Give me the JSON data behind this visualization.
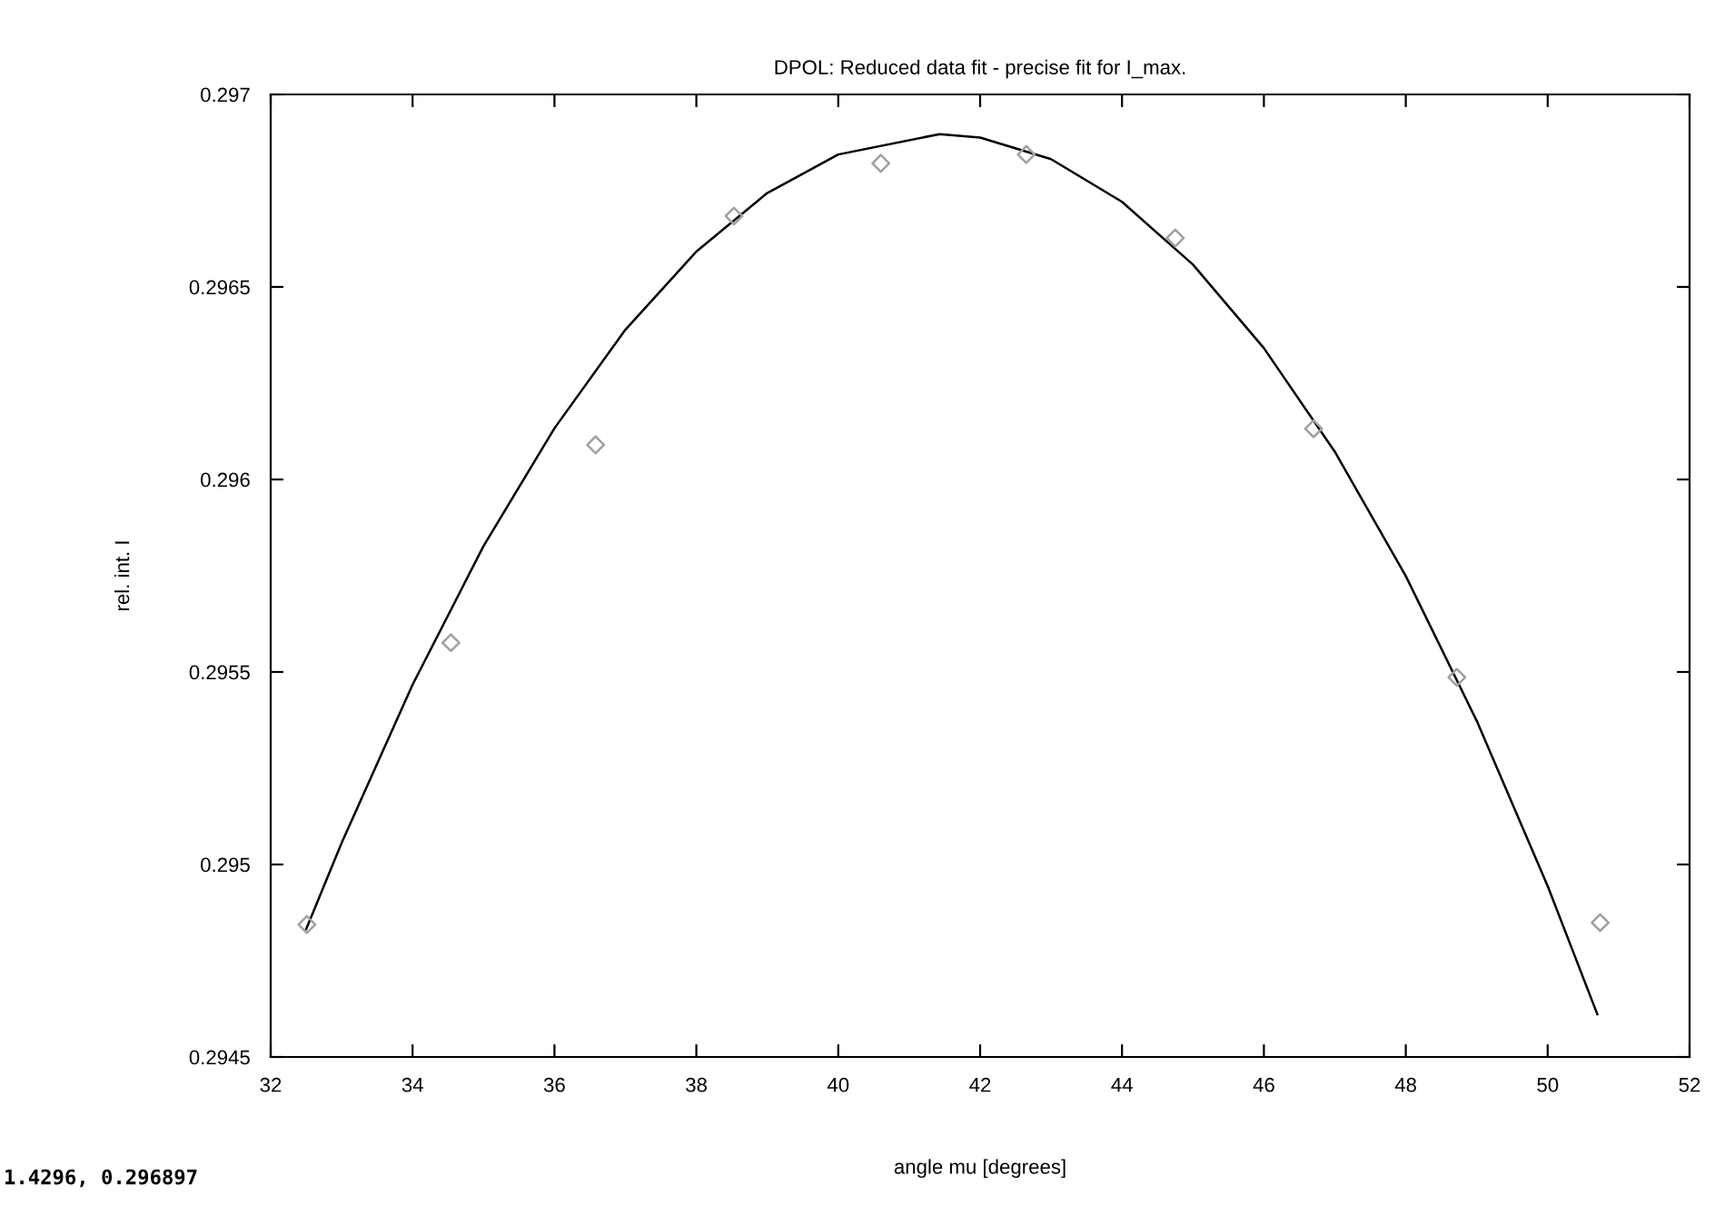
{
  "chart_data": {
    "type": "scatter",
    "title": "DPOL: Reduced data fit - precise fit for I_max.",
    "xlabel": "angle mu [degrees]",
    "ylabel": "rel. int. I",
    "annotations": [
      "1.4296, 0.296897"
    ],
    "xlim": [
      32,
      52
    ],
    "xticks": [
      32,
      34,
      36,
      38,
      40,
      42,
      44,
      46,
      48,
      50,
      52
    ],
    "ylim": [
      0.2945,
      0.297
    ],
    "yticks": [
      0.2945,
      0.295,
      0.2955,
      0.296,
      0.2965,
      0.297
    ],
    "grid": false,
    "legend": false,
    "series": [
      {
        "color": "#a0a0a0",
        "marker": "diamond",
        "x": [
          32.51,
          34.54,
          36.58,
          38.53,
          40.6,
          42.65,
          44.75,
          46.7,
          48.72,
          50.74
        ],
        "values": [
          0.294844,
          0.295576,
          0.29609,
          0.296684,
          0.296821,
          0.296844,
          0.296627,
          0.296132,
          0.295486,
          0.294849
        ]
      },
      {
        "type": "line",
        "color": "#000000",
        "marker": "none",
        "line_style": "solid",
        "x": [
          32.5,
          33,
          34,
          35,
          36,
          37,
          38,
          39,
          40,
          41.43,
          42,
          43,
          44,
          45,
          46,
          47,
          48,
          49,
          50,
          50.7
        ],
        "values": [
          0.294832,
          0.295056,
          0.295467,
          0.295827,
          0.296133,
          0.296389,
          0.296592,
          0.296744,
          0.296844,
          0.296897,
          0.296888,
          0.296832,
          0.296721,
          0.296558,
          0.296341,
          0.296072,
          0.295749,
          0.295373,
          0.294944,
          0.294611
        ]
      }
    ]
  }
}
